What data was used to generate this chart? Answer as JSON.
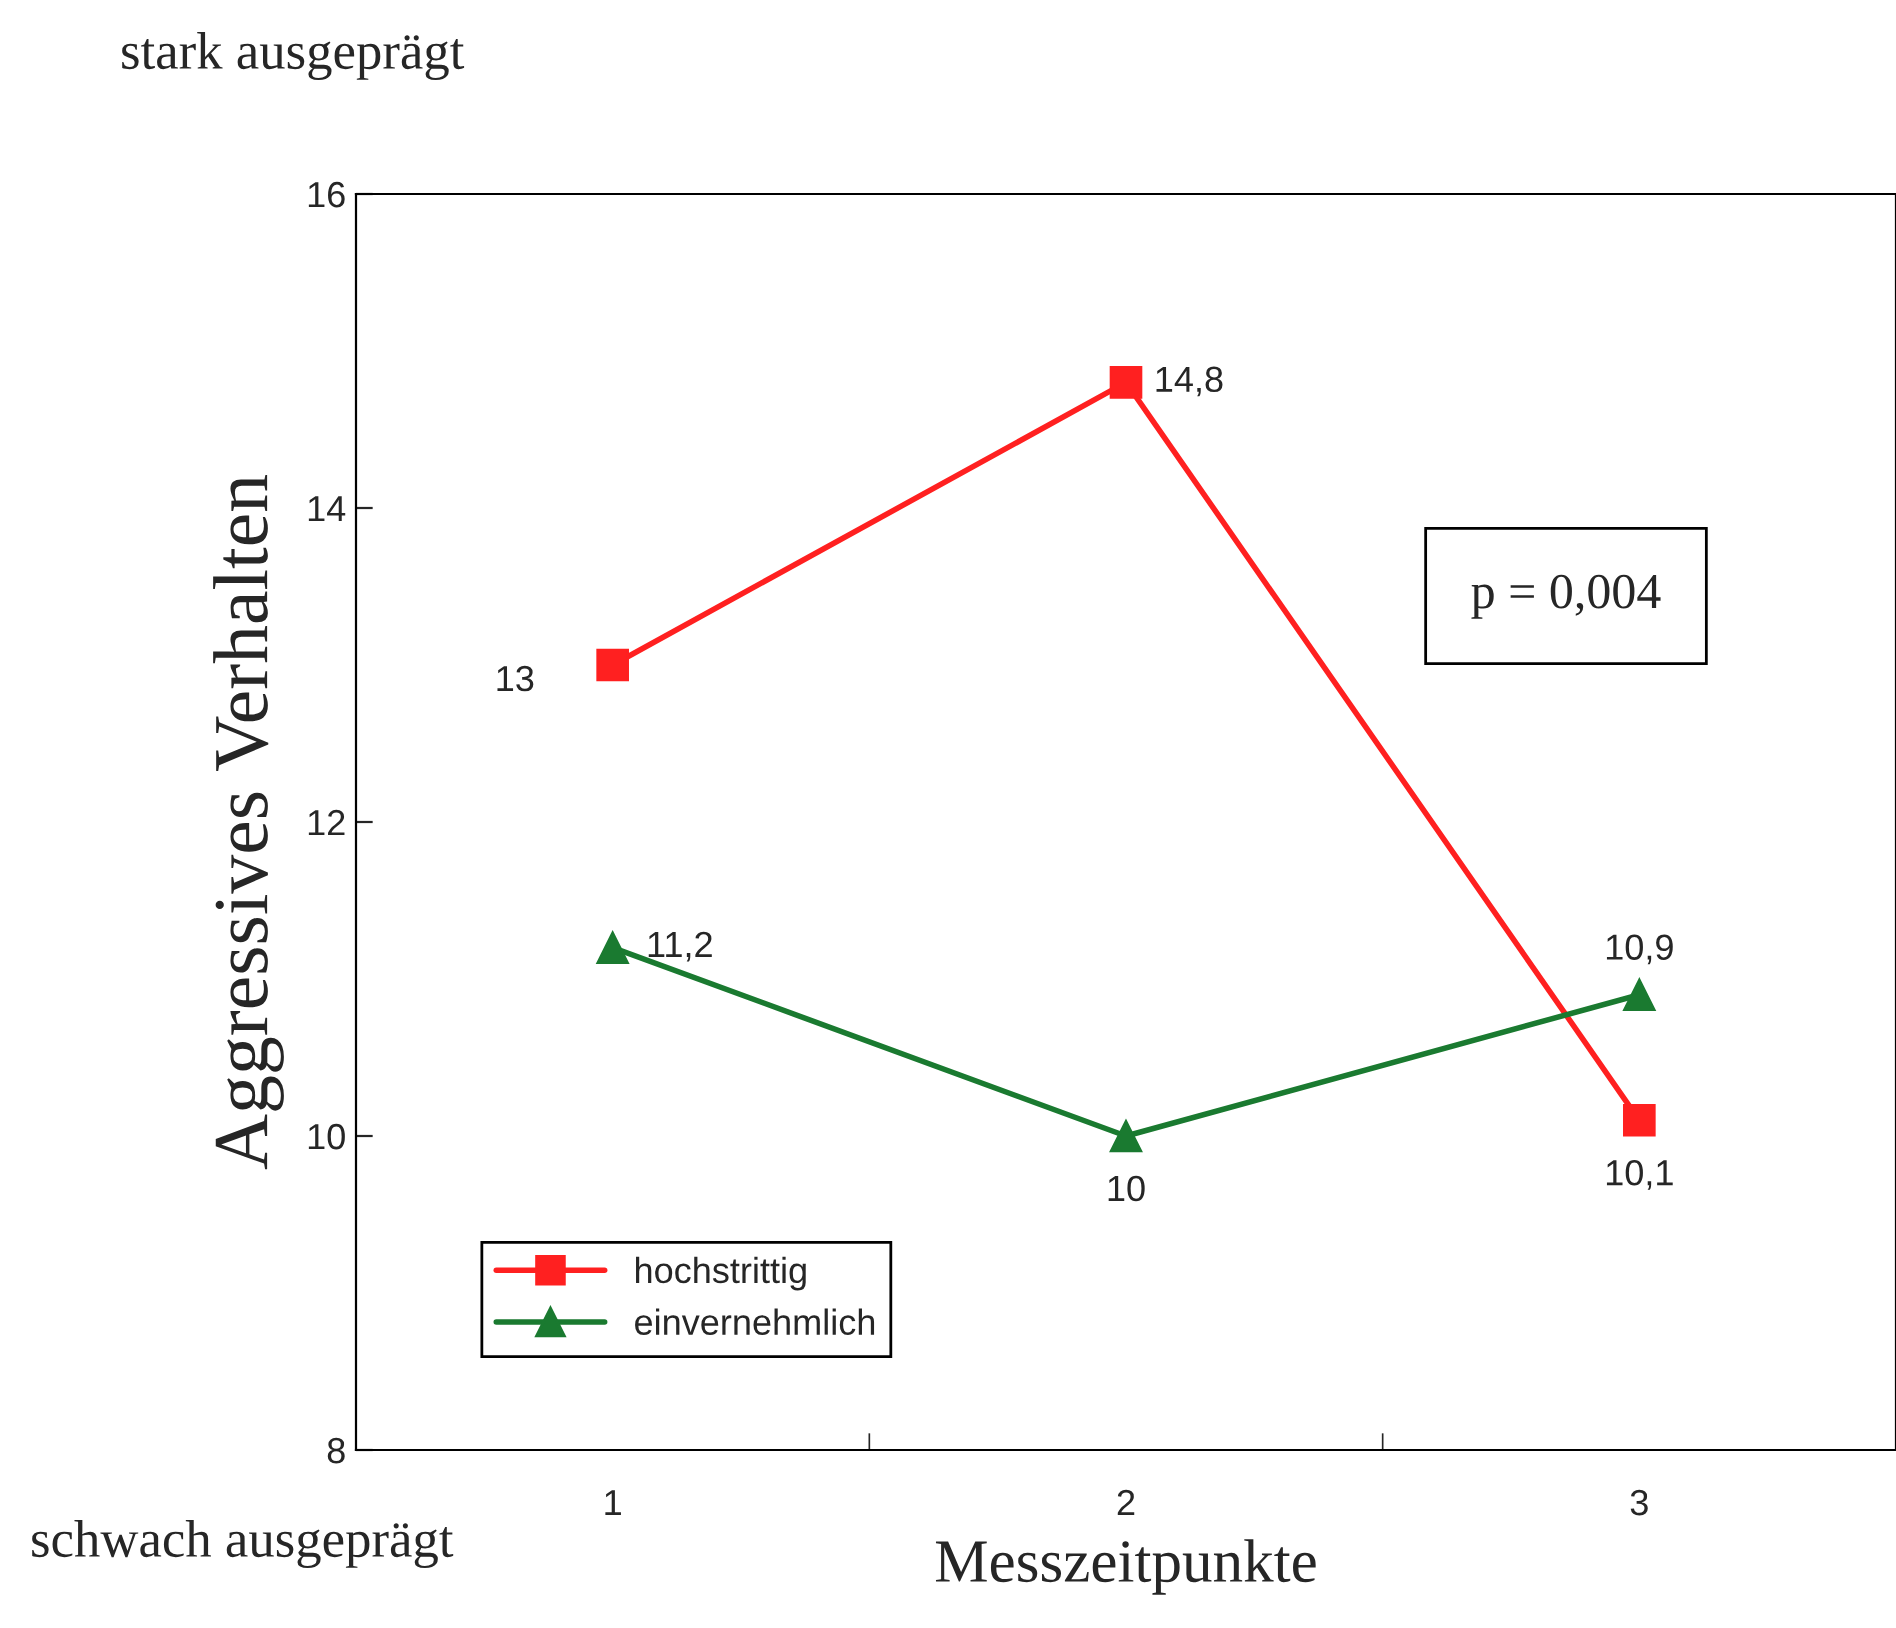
{
  "chart_data": {
    "type": "line",
    "xlabel": "Messzeitpunkte",
    "ylabel": "Aggressives Verhalten",
    "categories": [
      "1",
      "2",
      "3"
    ],
    "series": [
      {
        "name": "hochstrittig",
        "color": "#ff2020",
        "marker": "square",
        "values": [
          13,
          14.8,
          10.1
        ],
        "value_labels": [
          "13",
          "14,8",
          "10,1"
        ]
      },
      {
        "name": "einvernehmlich",
        "color": "#1a7a30",
        "marker": "triangle",
        "values": [
          11.2,
          10,
          10.9
        ],
        "value_labels": [
          "11,2",
          "10",
          "10,9"
        ]
      }
    ],
    "ylim": [
      8,
      16
    ],
    "yticks": [
      8,
      10,
      12,
      14,
      16
    ],
    "grid": false,
    "legend": "bottom left",
    "line_style": "solid",
    "annotations": [
      "stark ausgeprägt",
      "schwach ausgeprägt",
      "p = 0,004"
    ]
  }
}
